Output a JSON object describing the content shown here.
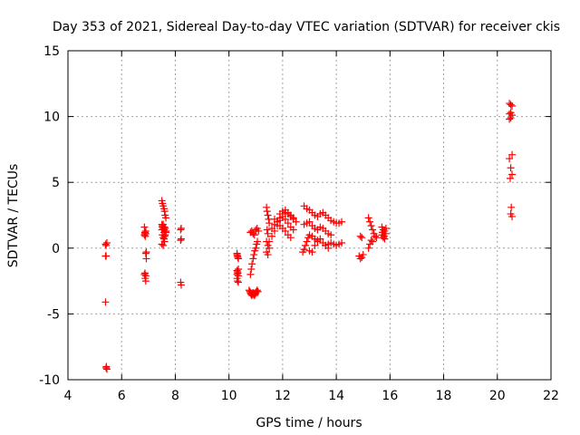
{
  "chart_data": {
    "type": "scatter",
    "title": "Day 353 of 2021, Sidereal Day-to-day VTEC variation (SDTVAR) for receiver ckis",
    "xlabel": "GPS time / hours",
    "ylabel": "SDTVAR / TECUs",
    "xlim": [
      4,
      22
    ],
    "ylim": [
      -10,
      15
    ],
    "xticks": [
      4,
      6,
      8,
      10,
      12,
      14,
      16,
      18,
      20,
      22
    ],
    "yticks": [
      -10,
      -5,
      0,
      5,
      10,
      15
    ],
    "grid": true,
    "marker": "+",
    "color": "#ff0000",
    "series": [
      {
        "name": "SDTVAR",
        "x": [
          5.4,
          5.42,
          5.45,
          5.4,
          5.42,
          5.4,
          5.43,
          5.45,
          5.42,
          6.85,
          6.87,
          6.9,
          6.88,
          6.9,
          6.92,
          6.85,
          6.87,
          6.9,
          6.9,
          6.88,
          6.92,
          6.85,
          6.87,
          6.9,
          7.5,
          7.52,
          7.55,
          7.58,
          7.6,
          7.62,
          7.65,
          7.5,
          7.52,
          7.55,
          7.58,
          7.6,
          7.62,
          7.65,
          7.52,
          7.55,
          7.58,
          7.6,
          7.5,
          7.55,
          7.6,
          7.65,
          7.52,
          7.58,
          7.62,
          7.5,
          7.55,
          8.2,
          8.22,
          8.2,
          8.22,
          8.2,
          8.22,
          10.3,
          10.32,
          10.35,
          10.3,
          10.33,
          10.35,
          10.3,
          10.32,
          10.35,
          10.3,
          10.32,
          10.35,
          10.3,
          10.33,
          10.75,
          10.78,
          10.8,
          10.82,
          10.85,
          10.88,
          10.9,
          10.92,
          10.95,
          10.98,
          11.0,
          11.02,
          11.05,
          11.08,
          10.8,
          10.83,
          10.86,
          10.9,
          10.93,
          10.96,
          11.0,
          11.03,
          11.06,
          10.8,
          10.85,
          10.9,
          10.95,
          11.0,
          11.05,
          11.1,
          11.4,
          11.42,
          11.45,
          11.48,
          11.5,
          11.42,
          11.45,
          11.4,
          11.45,
          11.5,
          11.4,
          11.45,
          11.5,
          11.6,
          11.7,
          11.8,
          11.9,
          12.0,
          12.1,
          12.2,
          12.3,
          12.4,
          11.6,
          11.7,
          11.8,
          11.9,
          12.0,
          12.1,
          12.2,
          12.3,
          12.4,
          12.5,
          11.7,
          11.8,
          11.9,
          12.0,
          12.1,
          12.2,
          12.3,
          11.9,
          12.0,
          12.1,
          12.2,
          12.3,
          12.4,
          12.8,
          12.9,
          13.0,
          13.1,
          13.2,
          13.3,
          13.4,
          13.5,
          13.6,
          13.7,
          13.8,
          13.9,
          14.0,
          14.1,
          14.2,
          12.8,
          12.9,
          13.0,
          13.1,
          13.2,
          13.3,
          13.4,
          13.5,
          13.6,
          13.7,
          13.8,
          12.75,
          12.8,
          12.85,
          12.9,
          12.95,
          13.0,
          13.1,
          13.2,
          13.3,
          13.0,
          13.1,
          13.2,
          13.3,
          13.4,
          13.5,
          13.6,
          13.7,
          13.6,
          13.7,
          13.8,
          13.9,
          14.0,
          14.1,
          14.2,
          14.85,
          14.9,
          14.95,
          15.0,
          14.9,
          14.95,
          15.2,
          15.25,
          15.3,
          15.35,
          15.4,
          15.45,
          15.5,
          15.2,
          15.25,
          15.3,
          15.35,
          15.7,
          15.75,
          15.8,
          15.85,
          15.7,
          15.75,
          15.8,
          15.85,
          15.72,
          15.78,
          20.45,
          20.5,
          20.55,
          20.45,
          20.5,
          20.55,
          20.45,
          20.5,
          20.55,
          20.45,
          20.5,
          20.55,
          20.48,
          20.52,
          20.5,
          20.55
        ],
        "y": [
          0.3,
          0.2,
          0.4,
          -0.6,
          -0.6,
          -4.1,
          -9.0,
          -9.2,
          -9.1,
          1.6,
          1.2,
          1.1,
          0.9,
          -0.4,
          -0.8,
          -2.0,
          -1.9,
          -2.1,
          -2.5,
          -2.3,
          -0.3,
          1.0,
          1.1,
          1.3,
          3.6,
          3.4,
          3.2,
          3.0,
          2.8,
          2.5,
          2.3,
          1.8,
          1.6,
          1.5,
          1.4,
          1.6,
          1.5,
          1.3,
          1.0,
          0.8,
          0.7,
          0.9,
          0.3,
          0.2,
          0.5,
          1.2,
          1.7,
          1.2,
          1.0,
          1.4,
          1.8,
          1.4,
          1.5,
          0.6,
          0.7,
          -2.6,
          -2.8,
          -0.4,
          -0.6,
          -0.8,
          -1.7,
          -1.9,
          -2.1,
          -2.3,
          -2.5,
          -2.6,
          -2.0,
          -1.8,
          -1.6,
          -0.5,
          -0.7,
          -3.2,
          -3.3,
          -3.4,
          -3.5,
          -3.6,
          -3.5,
          -3.4,
          -3.5,
          -3.6,
          -3.5,
          -3.4,
          -3.3,
          -3.2,
          -3.3,
          -2.0,
          -1.6,
          -1.2,
          -0.8,
          -0.5,
          -0.2,
          0.0,
          0.3,
          0.5,
          1.2,
          1.3,
          1.1,
          1.0,
          1.4,
          1.5,
          1.3,
          3.1,
          2.8,
          2.5,
          2.2,
          1.9,
          1.4,
          1.1,
          0.5,
          0.2,
          0.0,
          -0.3,
          -0.5,
          0.5,
          0.9,
          1.3,
          1.7,
          2.1,
          2.4,
          2.2,
          1.9,
          1.6,
          1.4,
          1.5,
          1.8,
          2.0,
          2.3,
          2.6,
          2.7,
          2.6,
          2.4,
          2.2,
          2.0,
          2.2,
          2.0,
          1.7,
          1.5,
          1.3,
          1.0,
          0.8,
          2.6,
          2.8,
          2.9,
          2.7,
          2.5,
          2.3,
          3.2,
          3.0,
          2.9,
          2.7,
          2.5,
          2.4,
          2.6,
          2.7,
          2.5,
          2.3,
          2.1,
          2.0,
          1.9,
          1.9,
          2.0,
          1.8,
          1.9,
          2.0,
          1.7,
          1.5,
          1.4,
          1.6,
          1.5,
          1.3,
          1.1,
          1.0,
          -0.3,
          -0.1,
          0.2,
          0.5,
          0.8,
          1.0,
          0.9,
          0.7,
          0.6,
          -0.2,
          -0.3,
          0.2,
          0.5,
          0.7,
          0.4,
          0.2,
          0.0,
          0.2,
          0.3,
          0.4,
          0.3,
          0.2,
          0.3,
          0.4,
          -0.6,
          -0.8,
          -0.7,
          -0.5,
          0.9,
          0.8,
          2.3,
          2.0,
          1.7,
          1.4,
          1.1,
          0.9,
          0.8,
          0.0,
          0.3,
          0.6,
          0.5,
          1.6,
          1.4,
          1.3,
          1.1,
          1.0,
          0.8,
          0.7,
          1.5,
          1.2,
          0.9,
          11.0,
          10.9,
          10.8,
          10.2,
          10.3,
          10.1,
          9.8,
          9.9,
          7.1,
          6.8,
          6.1,
          5.6,
          5.3,
          3.1,
          2.6,
          2.4
        ]
      }
    ]
  }
}
